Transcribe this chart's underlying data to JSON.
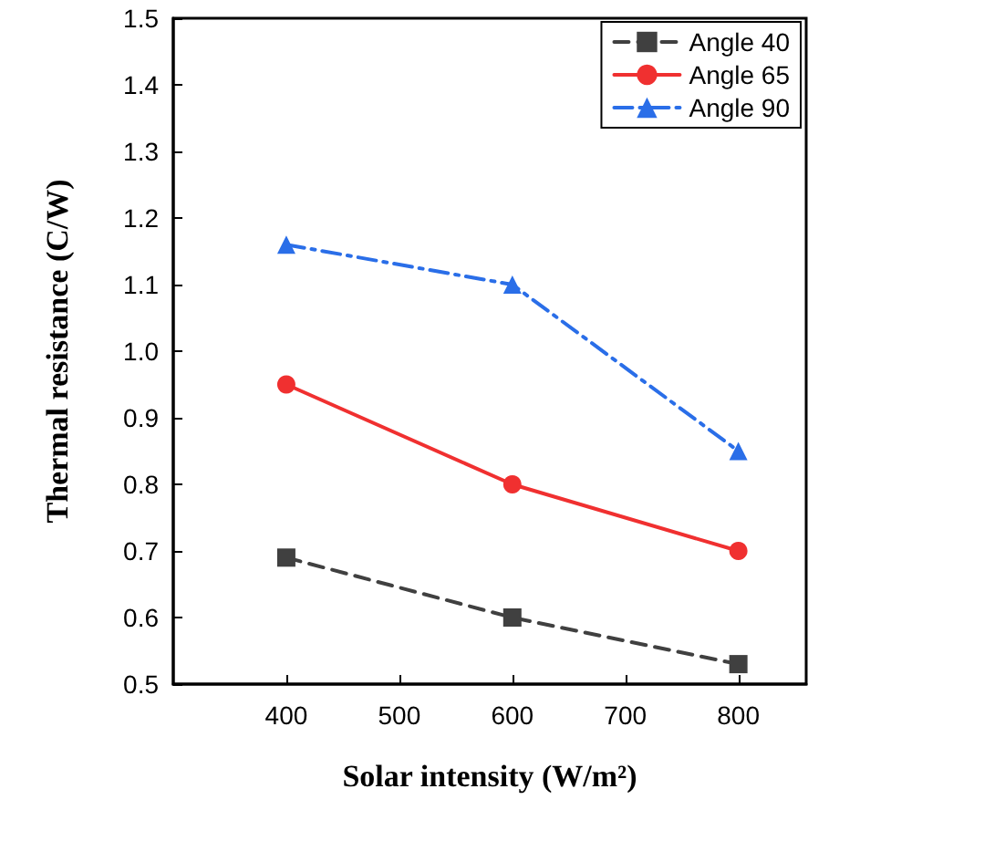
{
  "chart_data": {
    "type": "line",
    "xlabel": "Solar intensity (W/m²)",
    "ylabel": "Thermal resistance (C/W)",
    "x": [
      400,
      600,
      800
    ],
    "series": [
      {
        "name": "Angle 40",
        "color": "#404040",
        "values": [
          0.69,
          0.6,
          0.53
        ],
        "marker": "square",
        "line_style": "dashed"
      },
      {
        "name": "Angle 65",
        "color": "#f03030",
        "values": [
          0.95,
          0.8,
          0.7
        ],
        "marker": "circle",
        "line_style": "solid"
      },
      {
        "name": "Angle 90",
        "color": "#2a6ee8",
        "values": [
          1.16,
          1.1,
          0.85
        ],
        "marker": "triangle",
        "line_style": "dashdot"
      }
    ],
    "xlim": [
      300,
      860
    ],
    "xticks": [
      400,
      500,
      600,
      700,
      800
    ],
    "ylim": [
      0.5,
      1.5
    ],
    "yticks": [
      {
        "value": 0.5,
        "label": "0.5"
      },
      {
        "value": 0.6,
        "label": "0.6"
      },
      {
        "value": 0.7,
        "label": "0.7"
      },
      {
        "value": 0.8,
        "label": "0.8"
      },
      {
        "value": 0.9,
        "label": "0.9"
      },
      {
        "value": 1.0,
        "label": "1.0"
      },
      {
        "value": 1.1,
        "label": "1.1"
      },
      {
        "value": 1.2,
        "label": "1.2"
      },
      {
        "value": 1.3,
        "label": "1.3"
      },
      {
        "value": 1.4,
        "label": "1.4"
      },
      {
        "value": 1.5,
        "label": "1.5"
      }
    ],
    "grid": false,
    "legend": "top right"
  }
}
